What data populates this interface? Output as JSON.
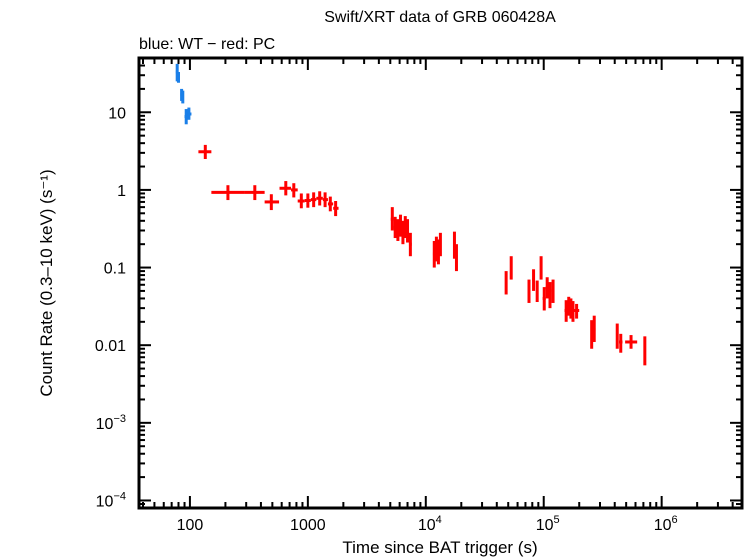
{
  "chart_data": {
    "type": "scatter",
    "title": "Swift/XRT data of GRB 060428A",
    "subtitle": "blue: WT − red: PC",
    "xlabel": "Time since BAT trigger (s)",
    "ylabel": "Count Rate (0.3–10 keV) (s⁻¹)",
    "xscale": "log",
    "yscale": "log",
    "xlim": [
      37,
      4800000
    ],
    "ylim": [
      8e-05,
      50
    ],
    "grid": false,
    "x_ticks": [
      {
        "value": 100,
        "label": "100",
        "sup": ""
      },
      {
        "value": 1000,
        "label": "1000",
        "sup": ""
      },
      {
        "value": 10000,
        "label": "10",
        "sup": "4"
      },
      {
        "value": 100000,
        "label": "10",
        "sup": "5"
      },
      {
        "value": 1000000,
        "label": "10",
        "sup": "6"
      }
    ],
    "y_ticks": [
      {
        "value": 10,
        "label": "10",
        "sup": ""
      },
      {
        "value": 1,
        "label": "1",
        "sup": ""
      },
      {
        "value": 0.1,
        "label": "0.1",
        "sup": ""
      },
      {
        "value": 0.01,
        "label": "0.01",
        "sup": ""
      },
      {
        "value": 0.001,
        "label": "10",
        "sup": "−3"
      },
      {
        "value": 0.0001,
        "label": "10",
        "sup": "−4"
      }
    ],
    "series": [
      {
        "name": "WT",
        "color": "#1a7fe8",
        "points": [
          {
            "x": 78,
            "xlo": 76,
            "xhi": 80,
            "y": 33,
            "ylo": 25,
            "yhi": 42
          },
          {
            "x": 80,
            "xlo": 79,
            "xhi": 82,
            "y": 28,
            "ylo": 24,
            "yhi": 33
          },
          {
            "x": 85,
            "xlo": 83,
            "xhi": 87,
            "y": 17,
            "ylo": 14,
            "yhi": 20
          },
          {
            "x": 87,
            "xlo": 86,
            "xhi": 89,
            "y": 16,
            "ylo": 13,
            "yhi": 19
          },
          {
            "x": 93,
            "xlo": 90,
            "xhi": 96,
            "y": 8.8,
            "ylo": 7.0,
            "yhi": 11.0
          },
          {
            "x": 98,
            "xlo": 95,
            "xhi": 103,
            "y": 9.5,
            "ylo": 8.0,
            "yhi": 11.5
          }
        ]
      },
      {
        "name": "PC",
        "color": "#ff0000",
        "points": [
          {
            "x": 135,
            "xlo": 118,
            "xhi": 152,
            "y": 3.1,
            "ylo": 2.5,
            "yhi": 3.8
          },
          {
            "x": 210,
            "xlo": 152,
            "xhi": 290,
            "y": 0.93,
            "ylo": 0.74,
            "yhi": 1.15
          },
          {
            "x": 355,
            "xlo": 290,
            "xhi": 430,
            "y": 0.93,
            "ylo": 0.74,
            "yhi": 1.15
          },
          {
            "x": 490,
            "xlo": 430,
            "xhi": 570,
            "y": 0.7,
            "ylo": 0.55,
            "yhi": 0.88
          },
          {
            "x": 650,
            "xlo": 575,
            "xhi": 720,
            "y": 1.05,
            "ylo": 0.85,
            "yhi": 1.3
          },
          {
            "x": 760,
            "xlo": 720,
            "xhi": 820,
            "y": 1.0,
            "ylo": 0.8,
            "yhi": 1.22
          },
          {
            "x": 880,
            "xlo": 820,
            "xhi": 940,
            "y": 0.72,
            "ylo": 0.58,
            "yhi": 0.9
          },
          {
            "x": 1000,
            "xlo": 940,
            "xhi": 1060,
            "y": 0.73,
            "ylo": 0.59,
            "yhi": 0.9
          },
          {
            "x": 1120,
            "xlo": 1060,
            "xhi": 1180,
            "y": 0.75,
            "ylo": 0.6,
            "yhi": 0.93
          },
          {
            "x": 1260,
            "xlo": 1180,
            "xhi": 1340,
            "y": 0.78,
            "ylo": 0.63,
            "yhi": 0.96
          },
          {
            "x": 1400,
            "xlo": 1340,
            "xhi": 1480,
            "y": 0.75,
            "ylo": 0.6,
            "yhi": 0.93
          },
          {
            "x": 1550,
            "xlo": 1480,
            "xhi": 1640,
            "y": 0.66,
            "ylo": 0.53,
            "yhi": 0.82
          },
          {
            "x": 1720,
            "xlo": 1640,
            "xhi": 1820,
            "y": 0.58,
            "ylo": 0.46,
            "yhi": 0.72
          },
          {
            "x": 5200,
            "xlo": 5050,
            "xhi": 5350,
            "y": 0.42,
            "ylo": 0.3,
            "yhi": 0.6
          },
          {
            "x": 5500,
            "xlo": 5350,
            "xhi": 5650,
            "y": 0.33,
            "ylo": 0.24,
            "yhi": 0.45
          },
          {
            "x": 5800,
            "xlo": 5650,
            "xhi": 5950,
            "y": 0.3,
            "ylo": 0.22,
            "yhi": 0.42
          },
          {
            "x": 6100,
            "xlo": 5950,
            "xhi": 6250,
            "y": 0.35,
            "ylo": 0.25,
            "yhi": 0.48
          },
          {
            "x": 6400,
            "xlo": 6250,
            "xhi": 6550,
            "y": 0.28,
            "ylo": 0.2,
            "yhi": 0.4
          },
          {
            "x": 6700,
            "xlo": 6550,
            "xhi": 6850,
            "y": 0.33,
            "ylo": 0.24,
            "yhi": 0.46
          },
          {
            "x": 7000,
            "xlo": 6850,
            "xhi": 7150,
            "y": 0.3,
            "ylo": 0.21,
            "yhi": 0.42
          },
          {
            "x": 7400,
            "xlo": 7200,
            "xhi": 7600,
            "y": 0.2,
            "ylo": 0.14,
            "yhi": 0.28
          },
          {
            "x": 11800,
            "xlo": 11500,
            "xhi": 12100,
            "y": 0.15,
            "ylo": 0.1,
            "yhi": 0.22
          },
          {
            "x": 12300,
            "xlo": 12100,
            "xhi": 12500,
            "y": 0.18,
            "ylo": 0.12,
            "yhi": 0.25
          },
          {
            "x": 12800,
            "xlo": 12500,
            "xhi": 13100,
            "y": 0.16,
            "ylo": 0.11,
            "yhi": 0.23
          },
          {
            "x": 13300,
            "xlo": 13100,
            "xhi": 13500,
            "y": 0.2,
            "ylo": 0.14,
            "yhi": 0.28
          },
          {
            "x": 17500,
            "xlo": 17200,
            "xhi": 17800,
            "y": 0.2,
            "ylo": 0.13,
            "yhi": 0.29
          },
          {
            "x": 18200,
            "xlo": 17800,
            "xhi": 18600,
            "y": 0.14,
            "ylo": 0.09,
            "yhi": 0.2
          },
          {
            "x": 48000,
            "xlo": 47000,
            "xhi": 49000,
            "y": 0.065,
            "ylo": 0.045,
            "yhi": 0.09
          },
          {
            "x": 53000,
            "xlo": 52000,
            "xhi": 54000,
            "y": 0.1,
            "ylo": 0.07,
            "yhi": 0.14
          },
          {
            "x": 75000,
            "xlo": 73000,
            "xhi": 77000,
            "y": 0.05,
            "ylo": 0.035,
            "yhi": 0.07
          },
          {
            "x": 82000,
            "xlo": 80000,
            "xhi": 84000,
            "y": 0.07,
            "ylo": 0.05,
            "yhi": 0.095
          },
          {
            "x": 88000,
            "xlo": 86000,
            "xhi": 90000,
            "y": 0.05,
            "ylo": 0.036,
            "yhi": 0.068
          },
          {
            "x": 95000,
            "xlo": 93000,
            "xhi": 97000,
            "y": 0.1,
            "ylo": 0.07,
            "yhi": 0.14
          },
          {
            "x": 101000,
            "xlo": 98000,
            "xhi": 104000,
            "y": 0.04,
            "ylo": 0.028,
            "yhi": 0.056
          },
          {
            "x": 107000,
            "xlo": 104000,
            "xhi": 110000,
            "y": 0.055,
            "ylo": 0.04,
            "yhi": 0.075
          },
          {
            "x": 113000,
            "xlo": 110000,
            "xhi": 116000,
            "y": 0.045,
            "ylo": 0.03,
            "yhi": 0.065
          },
          {
            "x": 120000,
            "xlo": 117000,
            "xhi": 123000,
            "y": 0.05,
            "ylo": 0.035,
            "yhi": 0.07
          },
          {
            "x": 155000,
            "xlo": 150000,
            "xhi": 160000,
            "y": 0.028,
            "ylo": 0.02,
            "yhi": 0.038
          },
          {
            "x": 163000,
            "xlo": 160000,
            "xhi": 167000,
            "y": 0.032,
            "ylo": 0.024,
            "yhi": 0.042
          },
          {
            "x": 170000,
            "xlo": 167000,
            "xhi": 173000,
            "y": 0.03,
            "ylo": 0.022,
            "yhi": 0.04
          },
          {
            "x": 177000,
            "xlo": 173000,
            "xhi": 181000,
            "y": 0.028,
            "ylo": 0.02,
            "yhi": 0.037
          },
          {
            "x": 190000,
            "xlo": 181000,
            "xhi": 200000,
            "y": 0.028,
            "ylo": 0.022,
            "yhi": 0.034
          },
          {
            "x": 255000,
            "xlo": 250000,
            "xhi": 260000,
            "y": 0.014,
            "ylo": 0.009,
            "yhi": 0.021
          },
          {
            "x": 268000,
            "xlo": 262000,
            "xhi": 275000,
            "y": 0.016,
            "ylo": 0.011,
            "yhi": 0.024
          },
          {
            "x": 420000,
            "xlo": 410000,
            "xhi": 430000,
            "y": 0.013,
            "ylo": 0.009,
            "yhi": 0.019
          },
          {
            "x": 450000,
            "xlo": 435000,
            "xhi": 465000,
            "y": 0.011,
            "ylo": 0.008,
            "yhi": 0.014
          },
          {
            "x": 550000,
            "xlo": 490000,
            "xhi": 620000,
            "y": 0.011,
            "ylo": 0.009,
            "yhi": 0.0135
          },
          {
            "x": 720000,
            "xlo": 705000,
            "xhi": 735000,
            "y": 0.0085,
            "ylo": 0.0055,
            "yhi": 0.013
          }
        ]
      }
    ]
  }
}
